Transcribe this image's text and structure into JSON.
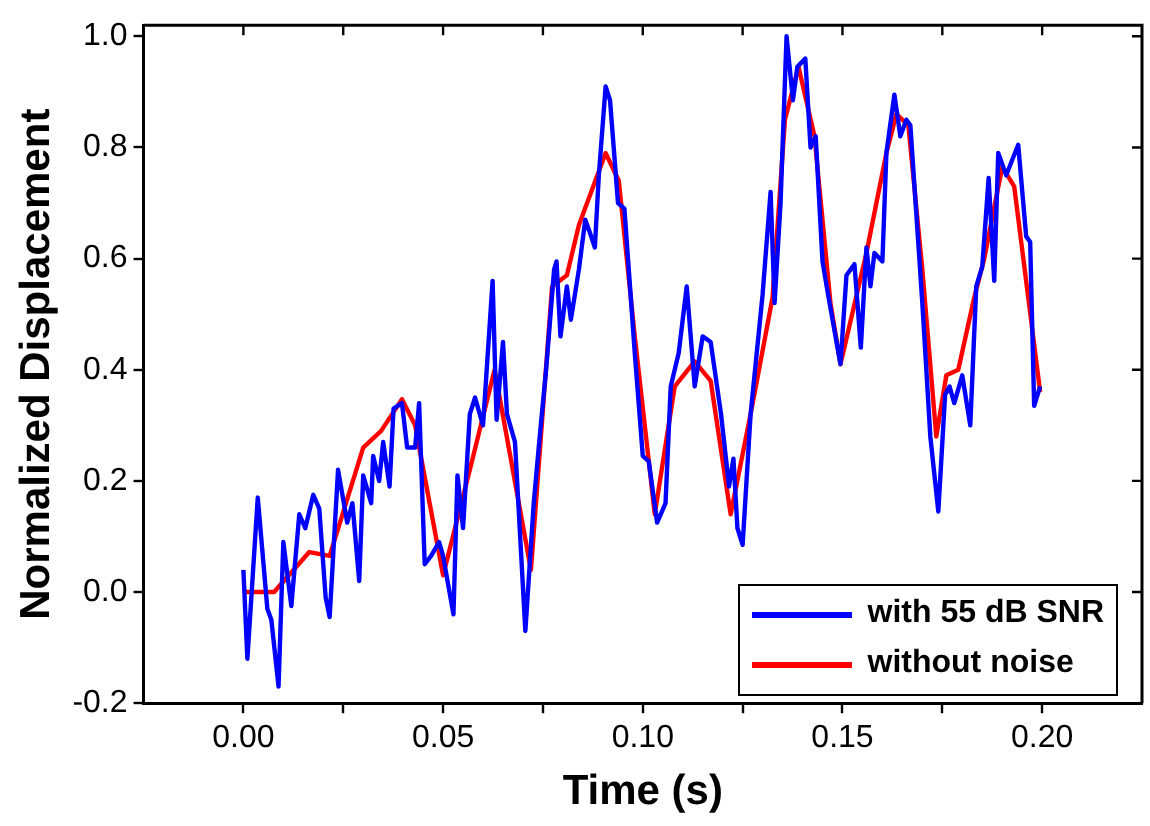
{
  "chart_data": {
    "type": "line",
    "xlabel": "Time (s)",
    "ylabel": "Normalized Displacement",
    "xlim": [
      -0.025,
      0.225
    ],
    "ylim": [
      -0.2,
      1.02
    ],
    "xticks": [
      {
        "value": 0,
        "label": "0.00"
      },
      {
        "value": 0.025,
        "label": null
      },
      {
        "value": 0.05,
        "label": "0.05"
      },
      {
        "value": 0.075,
        "label": null
      },
      {
        "value": 0.1,
        "label": "0.10"
      },
      {
        "value": 0.125,
        "label": null
      },
      {
        "value": 0.15,
        "label": "0.15"
      },
      {
        "value": 0.175,
        "label": null
      },
      {
        "value": 0.2,
        "label": "0.20"
      }
    ],
    "yticks": [
      {
        "value": -0.2,
        "label": "-0.2"
      },
      {
        "value": 0,
        "label": "0.0"
      },
      {
        "value": 0.2,
        "label": "0.2"
      },
      {
        "value": 0.4,
        "label": "0.4"
      },
      {
        "value": 0.6,
        "label": "0.6"
      },
      {
        "value": 0.8,
        "label": "0.8"
      },
      {
        "value": 1.0,
        "label": "1.0"
      }
    ],
    "grid": false,
    "legend": "bottom right",
    "marker": "none",
    "line_style": "solid",
    "series": [
      {
        "name": "with 55 dB SNR",
        "color": "#0000ff",
        "x": [
          0,
          0.001,
          0.0036,
          0.006,
          0.007,
          0.0088,
          0.01,
          0.012,
          0.014,
          0.0155,
          0.0175,
          0.019,
          0.0206,
          0.0216,
          0.0237,
          0.026,
          0.0273,
          0.029,
          0.03,
          0.032,
          0.0325,
          0.034,
          0.035,
          0.0366,
          0.0376,
          0.0397,
          0.041,
          0.043,
          0.044,
          0.0454,
          0.047,
          0.049,
          0.05,
          0.0526,
          0.0536,
          0.055,
          0.0567,
          0.058,
          0.06,
          0.0624,
          0.0634,
          0.065,
          0.066,
          0.068,
          0.0706,
          0.0727,
          0.0742,
          0.0758,
          0.0778,
          0.0784,
          0.0794,
          0.081,
          0.082,
          0.084,
          0.0856,
          0.0866,
          0.088,
          0.089,
          0.0907,
          0.0918,
          0.0938,
          0.0954,
          0.098,
          0.1,
          0.1015,
          0.1036,
          0.1057,
          0.107,
          0.109,
          0.111,
          0.113,
          0.115,
          0.117,
          0.1196,
          0.1216,
          0.1227,
          0.1237,
          0.125,
          0.127,
          0.13,
          0.132,
          0.133,
          0.1345,
          0.136,
          0.1376,
          0.1387,
          0.1407,
          0.142,
          0.1433,
          0.145,
          0.1464,
          0.1495,
          0.151,
          0.153,
          0.1546,
          0.156,
          0.157,
          0.158,
          0.16,
          0.161,
          0.163,
          0.1645,
          0.166,
          0.167,
          0.17,
          0.172,
          0.174,
          0.1757,
          0.1768,
          0.178,
          0.18,
          0.182,
          0.1835,
          0.185,
          0.1866,
          0.188,
          0.189,
          0.191,
          0.194,
          0.196,
          0.197,
          0.198,
          0.1995
        ],
        "values": [
          0.04,
          -0.12,
          0.17,
          -0.03,
          -0.05,
          -0.17,
          0.09,
          -0.025,
          0.14,
          0.115,
          0.175,
          0.15,
          -0.01,
          -0.045,
          0.22,
          0.125,
          0.16,
          0.02,
          0.21,
          0.16,
          0.245,
          0.2,
          0.27,
          0.19,
          0.33,
          0.34,
          0.26,
          0.26,
          0.34,
          0.05,
          0.065,
          0.09,
          0.065,
          -0.04,
          0.21,
          0.115,
          0.32,
          0.35,
          0.3,
          0.56,
          0.31,
          0.45,
          0.32,
          0.27,
          -0.07,
          0.16,
          0.28,
          0.4,
          0.58,
          0.595,
          0.46,
          0.55,
          0.49,
          0.58,
          0.67,
          0.65,
          0.62,
          0.75,
          0.91,
          0.885,
          0.7,
          0.69,
          0.43,
          0.245,
          0.235,
          0.125,
          0.16,
          0.37,
          0.43,
          0.55,
          0.37,
          0.46,
          0.45,
          0.32,
          0.19,
          0.24,
          0.115,
          0.085,
          0.32,
          0.535,
          0.72,
          0.52,
          0.7,
          1.0,
          0.885,
          0.945,
          0.96,
          0.8,
          0.82,
          0.595,
          0.535,
          0.41,
          0.57,
          0.59,
          0.44,
          0.62,
          0.55,
          0.61,
          0.595,
          0.79,
          0.895,
          0.82,
          0.85,
          0.84,
          0.52,
          0.28,
          0.145,
          0.355,
          0.37,
          0.34,
          0.39,
          0.3,
          0.55,
          0.585,
          0.745,
          0.56,
          0.79,
          0.75,
          0.805,
          0.64,
          0.63,
          0.335,
          0.37
        ]
      },
      {
        "name": "without noise",
        "color": "#ff0000",
        "x": [
          0,
          0.0077,
          0.0165,
          0.0216,
          0.03,
          0.0345,
          0.0397,
          0.043,
          0.05,
          0.0567,
          0.0629,
          0.072,
          0.0773,
          0.081,
          0.084,
          0.0907,
          0.094,
          0.098,
          0.103,
          0.108,
          0.113,
          0.117,
          0.122,
          0.127,
          0.1325,
          0.1356,
          0.139,
          0.143,
          0.147,
          0.1495,
          0.156,
          0.161,
          0.1635,
          0.1665,
          0.17,
          0.1735,
          0.176,
          0.179,
          0.183,
          0.1855,
          0.19,
          0.193,
          0.1995
        ],
        "values": [
          0,
          0,
          0.072,
          0.065,
          0.26,
          0.29,
          0.347,
          0.3,
          0.03,
          0.22,
          0.4,
          0.04,
          0.55,
          0.57,
          0.66,
          0.79,
          0.74,
          0.46,
          0.14,
          0.37,
          0.415,
          0.38,
          0.14,
          0.32,
          0.53,
          0.85,
          0.945,
          0.82,
          0.52,
          0.41,
          0.61,
          0.79,
          0.86,
          0.84,
          0.58,
          0.28,
          0.39,
          0.4,
          0.53,
          0.6,
          0.765,
          0.73,
          0.36
        ]
      }
    ]
  }
}
